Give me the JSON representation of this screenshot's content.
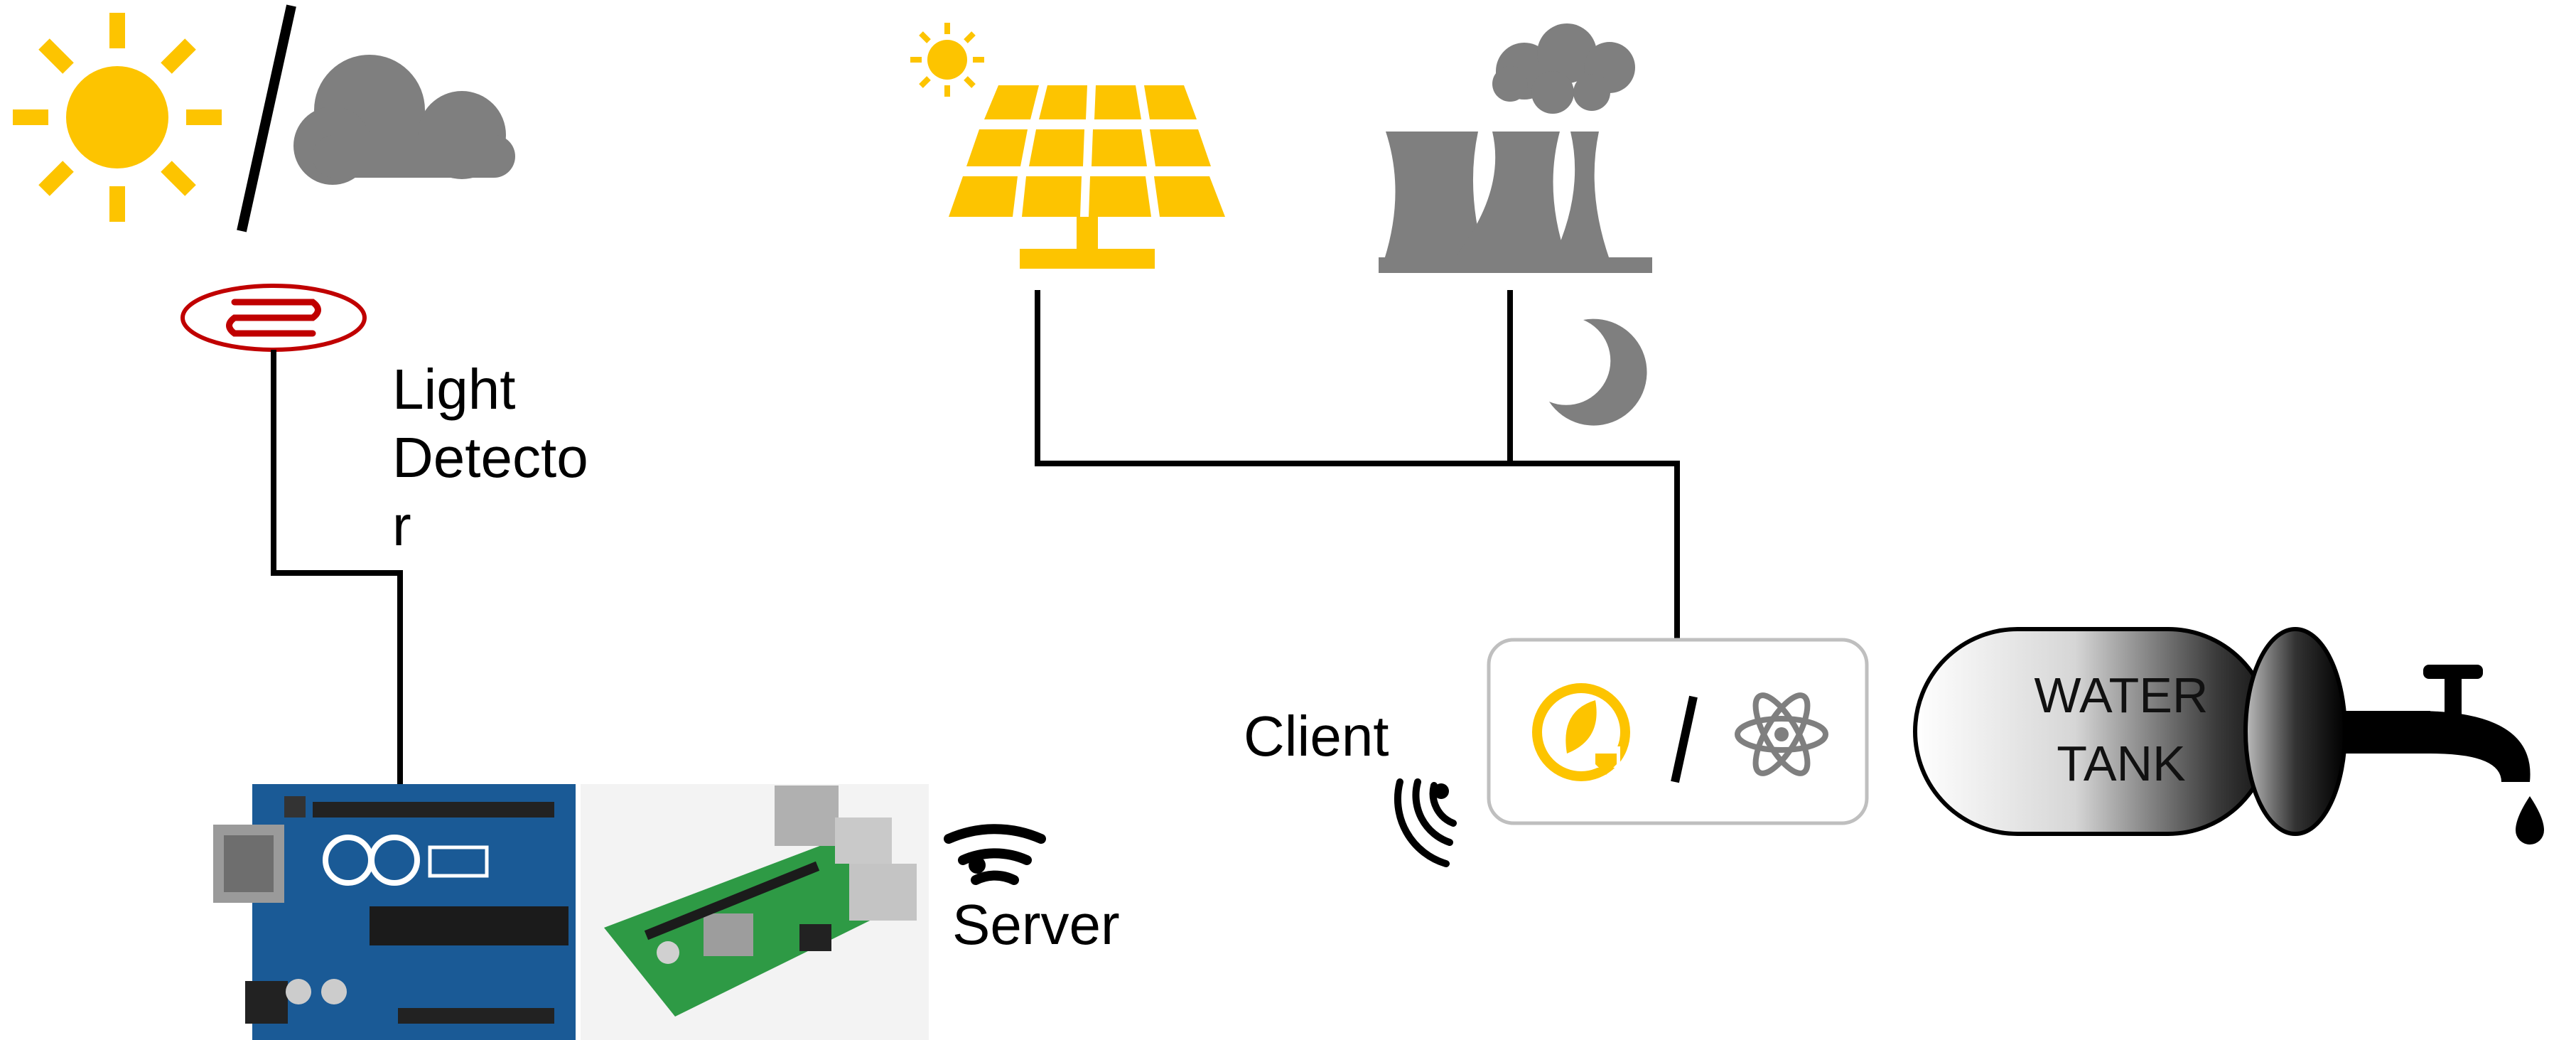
{
  "labels": {
    "light_detector": [
      "Light",
      "Detecto",
      "r"
    ],
    "client": "Client",
    "server": "Server",
    "water_tank": [
      "WATER",
      "TANK"
    ],
    "selector_separator": "/"
  },
  "colors": {
    "sun": "#FDC400",
    "cloud": "#7F7F7F",
    "solar_panel": "#FDC400",
    "plant": "#7F7F7F",
    "moon": "#7F7F7F",
    "wire": "#000000",
    "ldr": "#C00000",
    "box_border": "#BFBFBF",
    "arduino_board": "#1A5A96",
    "raspberry_board": "#2E9A45"
  },
  "icons": {
    "top_left": [
      "sun-icon",
      "slash-divider",
      "cloud-icon"
    ],
    "energy_sources": [
      "small-sun-icon",
      "solar-panel-icon",
      "power-plant-icon",
      "moon-icon"
    ],
    "selector": [
      "green-energy-icon",
      "slash-divider",
      "atom-icon"
    ],
    "network": [
      "server-wifi-icon",
      "client-wifi-icon"
    ],
    "storage": [
      "water-tank-icon",
      "faucet-icon",
      "water-drop-icon"
    ]
  }
}
